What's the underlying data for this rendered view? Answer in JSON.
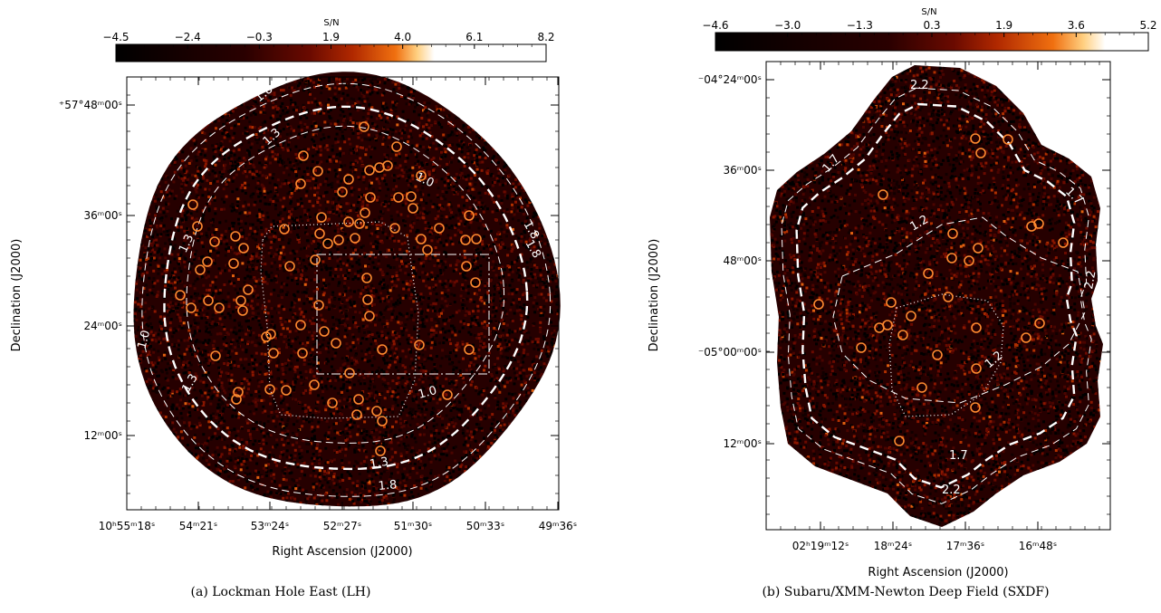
{
  "chart_data": [
    {
      "type": "heatmap",
      "caption": "(a) Lockman Hole East (LH)",
      "xlabel": "Right Ascension (J2000)",
      "ylabel": "Declination (J2000)",
      "colorbar": {
        "title": "S/N",
        "ticks": [
          "−4.5",
          "−2.4",
          "−0.3",
          "1.9",
          "4.0",
          "6.1",
          "8.2"
        ],
        "range": [
          -4.5,
          8.2
        ],
        "colormap": [
          "#000000",
          "#3a0000",
          "#7a1200",
          "#d04000",
          "#ff9a20",
          "#ffe8b0",
          "#ffffff"
        ]
      },
      "x_ticks": [
        "10ʰ55ᵐ18ˢ",
        "54ᵐ21ˢ",
        "53ᵐ24ˢ",
        "52ᵐ27ˢ",
        "51ᵐ30ˢ",
        "50ᵐ33ˢ",
        "49ᵐ36ˢ"
      ],
      "y_ticks": [
        "⁺57°48ᵐ00ˢ",
        "36ᵐ00ˢ",
        "24ᵐ00ˢ",
        "12ᵐ00ˢ"
      ],
      "contour_labels": [
        "1.8",
        "1.3",
        "1.0",
        "1.3",
        "1.8",
        "1.0",
        "1.8",
        "1.3",
        "1.3",
        "1.8",
        "1.0"
      ],
      "source_count": 60
    },
    {
      "type": "heatmap",
      "caption": "(b) Subaru/XMM-Newton Deep Field (SXDF)",
      "xlabel": "Right Ascension (J2000)",
      "ylabel": "Declination (J2000)",
      "colorbar": {
        "title": "S/N",
        "ticks": [
          "−4.6",
          "−3.0",
          "−1.3",
          "0.3",
          "1.9",
          "3.6",
          "5.2"
        ],
        "range": [
          -4.6,
          5.2
        ],
        "colormap": [
          "#000000",
          "#3a0000",
          "#7a1200",
          "#d04000",
          "#ff9a20",
          "#ffe8b0",
          "#ffffff"
        ]
      },
      "x_ticks": [
        "02ʰ19ᵐ12ˢ",
        "18ᵐ24ˢ",
        "17ᵐ36ˢ",
        "16ᵐ48ˢ"
      ],
      "y_ticks": [
        "⁻04°24ᵐ00ˢ",
        "36ᵐ00ˢ",
        "48ᵐ00ˢ",
        "⁻05°00ᵐ00ˢ",
        "12ᵐ00ˢ"
      ],
      "contour_labels": [
        "2.2",
        "1.7",
        "1.7",
        "1.2",
        "2.2",
        "1.2",
        "1.7",
        "2.2"
      ],
      "source_count": 30
    }
  ]
}
